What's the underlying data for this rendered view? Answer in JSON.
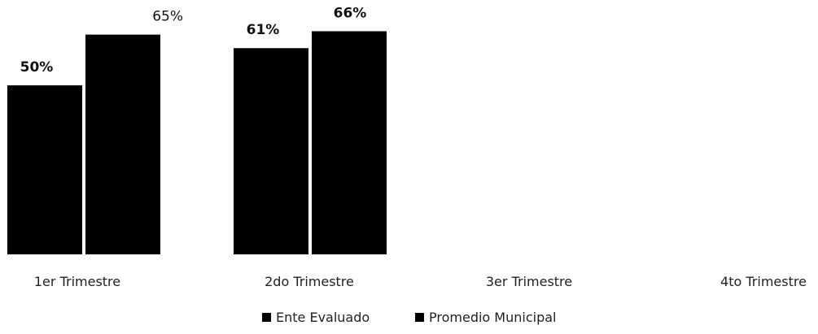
{
  "chart_data": {
    "type": "bar",
    "categories": [
      "1er Trimestre",
      "2do Trimestre",
      "3er Trimestre",
      "4to Trimestre"
    ],
    "series": [
      {
        "name": "Ente Evaluado",
        "values": [
          50,
          61,
          null,
          null
        ],
        "labels": [
          "50%",
          "61%",
          "",
          ""
        ],
        "color": "#000000"
      },
      {
        "name": "Promedio Municipal",
        "values": [
          65,
          66,
          null,
          null
        ],
        "labels": [
          "65%",
          "66%",
          "",
          ""
        ],
        "color": "#000000"
      }
    ],
    "title": "",
    "xlabel": "",
    "ylabel": "",
    "ylim": [
      0,
      70
    ],
    "grid": false,
    "legend_position": "bottom"
  }
}
